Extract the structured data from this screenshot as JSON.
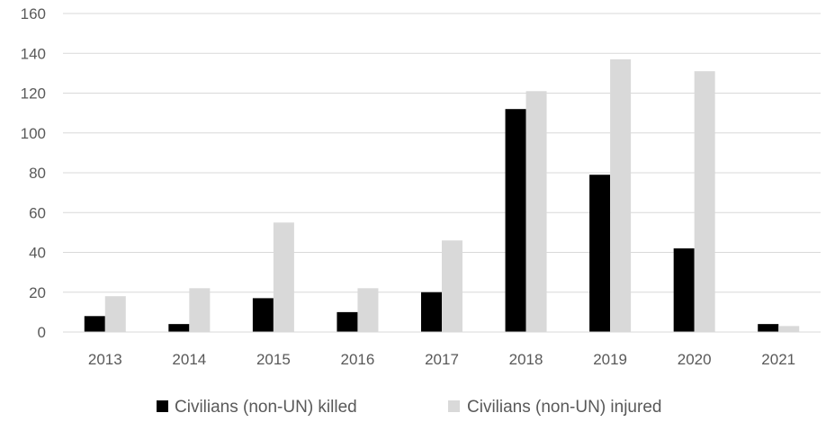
{
  "chart_data": {
    "type": "bar",
    "categories": [
      "2013",
      "2014",
      "2015",
      "2016",
      "2017",
      "2018",
      "2019",
      "2020",
      "2021"
    ],
    "series": [
      {
        "name": "Civilians (non-UN) killed",
        "values": [
          8,
          4,
          17,
          10,
          20,
          112,
          79,
          42,
          4
        ],
        "color": "#000000"
      },
      {
        "name": "Civilians (non-UN) injured",
        "values": [
          18,
          22,
          55,
          22,
          46,
          121,
          137,
          131,
          3
        ],
        "color": "#d9d9d9"
      }
    ],
    "yticks": [
      "0",
      "20",
      "40",
      "60",
      "80",
      "100",
      "120",
      "140",
      "160"
    ],
    "ylim": [
      0,
      160
    ],
    "grid": true,
    "legend_position": "bottom",
    "title": "",
    "xlabel": "",
    "ylabel": ""
  }
}
